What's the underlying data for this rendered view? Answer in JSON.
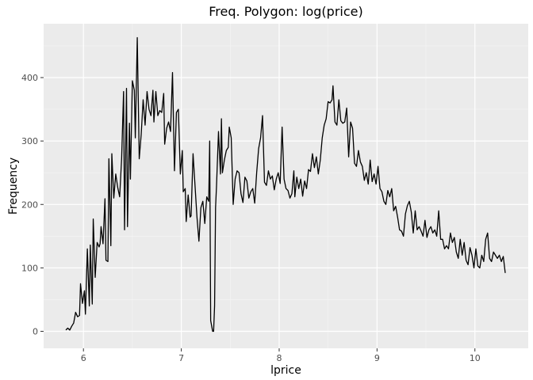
{
  "chart_data": {
    "type": "line",
    "title": "Freq. Polygon: log(price)",
    "xlabel": "lprice",
    "ylabel": "Frequency",
    "xlim": [
      5.7,
      10.0
    ],
    "ylim": [
      -25,
      485
    ],
    "x_ticks": [
      6,
      7,
      8,
      9,
      10
    ],
    "y_ticks": [
      0,
      100,
      200,
      300,
      400
    ],
    "x_minor_ticks": [
      6.5,
      7.5,
      8.5,
      9.5
    ],
    "y_minor_ticks": [
      50,
      150,
      250,
      350,
      450
    ],
    "grid": true,
    "legend": "none",
    "colors": {
      "panel": "#ebebeb",
      "grid_major": "#ffffff",
      "grid_minor": "#f5f5f5",
      "line": "#000000",
      "tick": "#333333"
    },
    "series": [
      {
        "values": [
          [
            5.82,
            2
          ],
          [
            5.84,
            5
          ],
          [
            5.86,
            2
          ],
          [
            5.88,
            8
          ],
          [
            5.9,
            13
          ],
          [
            5.92,
            30
          ],
          [
            5.94,
            23
          ],
          [
            5.96,
            25
          ],
          [
            5.97,
            75
          ],
          [
            5.99,
            44
          ],
          [
            6.01,
            64
          ],
          [
            6.02,
            27
          ],
          [
            6.04,
            130
          ],
          [
            6.06,
            40
          ],
          [
            6.07,
            136
          ],
          [
            6.09,
            43
          ],
          [
            6.1,
            177
          ],
          [
            6.12,
            85
          ],
          [
            6.14,
            140
          ],
          [
            6.16,
            133
          ],
          [
            6.17,
            138
          ],
          [
            6.18,
            165
          ],
          [
            6.2,
            138
          ],
          [
            6.22,
            209
          ],
          [
            6.23,
            112
          ],
          [
            6.25,
            110
          ],
          [
            6.26,
            272
          ],
          [
            6.28,
            135
          ],
          [
            6.29,
            280
          ],
          [
            6.31,
            210
          ],
          [
            6.33,
            248
          ],
          [
            6.35,
            227
          ],
          [
            6.37,
            212
          ],
          [
            6.39,
            272
          ],
          [
            6.41,
            378
          ],
          [
            6.42,
            160
          ],
          [
            6.44,
            383
          ],
          [
            6.45,
            165
          ],
          [
            6.47,
            328
          ],
          [
            6.48,
            240
          ],
          [
            6.5,
            395
          ],
          [
            6.52,
            380
          ],
          [
            6.53,
            305
          ],
          [
            6.55,
            463
          ],
          [
            6.57,
            272
          ],
          [
            6.59,
            310
          ],
          [
            6.61,
            365
          ],
          [
            6.63,
            325
          ],
          [
            6.65,
            378
          ],
          [
            6.67,
            350
          ],
          [
            6.69,
            340
          ],
          [
            6.71,
            380
          ],
          [
            6.72,
            330
          ],
          [
            6.74,
            378
          ],
          [
            6.76,
            340
          ],
          [
            6.78,
            348
          ],
          [
            6.8,
            345
          ],
          [
            6.82,
            375
          ],
          [
            6.83,
            295
          ],
          [
            6.85,
            320
          ],
          [
            6.87,
            330
          ],
          [
            6.89,
            315
          ],
          [
            6.91,
            408
          ],
          [
            6.93,
            253
          ],
          [
            6.95,
            345
          ],
          [
            6.97,
            350
          ],
          [
            6.99,
            248
          ],
          [
            7.01,
            285
          ],
          [
            7.02,
            220
          ],
          [
            7.04,
            225
          ],
          [
            7.05,
            173
          ],
          [
            7.07,
            215
          ],
          [
            7.09,
            180
          ],
          [
            7.1,
            182
          ],
          [
            7.12,
            280
          ],
          [
            7.14,
            230
          ],
          [
            7.16,
            180
          ],
          [
            7.18,
            142
          ],
          [
            7.2,
            195
          ],
          [
            7.22,
            205
          ],
          [
            7.24,
            170
          ],
          [
            7.26,
            212
          ],
          [
            7.28,
            205
          ],
          [
            7.29,
            300
          ],
          [
            7.3,
            17
          ],
          [
            7.32,
            0
          ],
          [
            7.33,
            0
          ],
          [
            7.34,
            40
          ],
          [
            7.35,
            195
          ],
          [
            7.36,
            230
          ],
          [
            7.38,
            315
          ],
          [
            7.4,
            248
          ],
          [
            7.41,
            335
          ],
          [
            7.42,
            250
          ],
          [
            7.44,
            270
          ],
          [
            7.46,
            285
          ],
          [
            7.48,
            290
          ],
          [
            7.49,
            322
          ],
          [
            7.51,
            305
          ],
          [
            7.53,
            200
          ],
          [
            7.55,
            240
          ],
          [
            7.57,
            253
          ],
          [
            7.59,
            250
          ],
          [
            7.61,
            217
          ],
          [
            7.63,
            203
          ],
          [
            7.65,
            243
          ],
          [
            7.67,
            237
          ],
          [
            7.69,
            210
          ],
          [
            7.71,
            220
          ],
          [
            7.73,
            225
          ],
          [
            7.75,
            202
          ],
          [
            7.77,
            250
          ],
          [
            7.79,
            288
          ],
          [
            7.81,
            305
          ],
          [
            7.83,
            340
          ],
          [
            7.85,
            235
          ],
          [
            7.87,
            230
          ],
          [
            7.89,
            253
          ],
          [
            7.91,
            240
          ],
          [
            7.93,
            245
          ],
          [
            7.95,
            223
          ],
          [
            7.97,
            240
          ],
          [
            7.99,
            250
          ],
          [
            8.01,
            233
          ],
          [
            8.03,
            322
          ],
          [
            8.05,
            240
          ],
          [
            8.07,
            225
          ],
          [
            8.09,
            222
          ],
          [
            8.11,
            210
          ],
          [
            8.13,
            217
          ],
          [
            8.15,
            253
          ],
          [
            8.16,
            212
          ],
          [
            8.18,
            243
          ],
          [
            8.2,
            225
          ],
          [
            8.22,
            240
          ],
          [
            8.24,
            213
          ],
          [
            8.26,
            237
          ],
          [
            8.28,
            225
          ],
          [
            8.3,
            255
          ],
          [
            8.32,
            252
          ],
          [
            8.34,
            280
          ],
          [
            8.36,
            258
          ],
          [
            8.38,
            275
          ],
          [
            8.4,
            248
          ],
          [
            8.42,
            270
          ],
          [
            8.44,
            305
          ],
          [
            8.46,
            325
          ],
          [
            8.48,
            335
          ],
          [
            8.5,
            362
          ],
          [
            8.52,
            360
          ],
          [
            8.54,
            365
          ],
          [
            8.55,
            387
          ],
          [
            8.57,
            330
          ],
          [
            8.59,
            325
          ],
          [
            8.61,
            365
          ],
          [
            8.63,
            332
          ],
          [
            8.65,
            328
          ],
          [
            8.67,
            330
          ],
          [
            8.69,
            352
          ],
          [
            8.71,
            275
          ],
          [
            8.73,
            330
          ],
          [
            8.75,
            320
          ],
          [
            8.77,
            265
          ],
          [
            8.79,
            260
          ],
          [
            8.81,
            285
          ],
          [
            8.83,
            267
          ],
          [
            8.85,
            260
          ],
          [
            8.87,
            238
          ],
          [
            8.89,
            250
          ],
          [
            8.91,
            232
          ],
          [
            8.93,
            270
          ],
          [
            8.95,
            236
          ],
          [
            8.97,
            248
          ],
          [
            8.99,
            232
          ],
          [
            9.01,
            260
          ],
          [
            9.03,
            225
          ],
          [
            9.05,
            220
          ],
          [
            9.07,
            205
          ],
          [
            9.09,
            200
          ],
          [
            9.11,
            222
          ],
          [
            9.13,
            212
          ],
          [
            9.15,
            225
          ],
          [
            9.17,
            190
          ],
          [
            9.19,
            197
          ],
          [
            9.21,
            180
          ],
          [
            9.23,
            160
          ],
          [
            9.25,
            158
          ],
          [
            9.27,
            150
          ],
          [
            9.29,
            185
          ],
          [
            9.31,
            198
          ],
          [
            9.33,
            205
          ],
          [
            9.35,
            188
          ],
          [
            9.37,
            155
          ],
          [
            9.39,
            190
          ],
          [
            9.41,
            160
          ],
          [
            9.43,
            165
          ],
          [
            9.45,
            158
          ],
          [
            9.47,
            150
          ],
          [
            9.49,
            175
          ],
          [
            9.51,
            148
          ],
          [
            9.53,
            160
          ],
          [
            9.55,
            165
          ],
          [
            9.57,
            155
          ],
          [
            9.59,
            160
          ],
          [
            9.61,
            150
          ],
          [
            9.63,
            190
          ],
          [
            9.65,
            145
          ],
          [
            9.67,
            145
          ],
          [
            9.69,
            130
          ],
          [
            9.71,
            135
          ],
          [
            9.73,
            130
          ],
          [
            9.75,
            155
          ],
          [
            9.77,
            140
          ],
          [
            9.79,
            148
          ],
          [
            9.81,
            125
          ],
          [
            9.83,
            115
          ],
          [
            9.85,
            145
          ],
          [
            9.87,
            120
          ],
          [
            9.89,
            140
          ],
          [
            9.91,
            112
          ],
          [
            9.93,
            105
          ],
          [
            9.95,
            132
          ],
          [
            9.97,
            120
          ],
          [
            9.99,
            100
          ],
          [
            10.01,
            130
          ],
          [
            10.03,
            103
          ],
          [
            10.05,
            100
          ],
          [
            10.07,
            120
          ],
          [
            10.09,
            110
          ],
          [
            10.11,
            145
          ],
          [
            10.13,
            155
          ],
          [
            10.15,
            115
          ],
          [
            10.17,
            110
          ],
          [
            10.19,
            125
          ],
          [
            10.21,
            120
          ],
          [
            10.23,
            115
          ],
          [
            10.25,
            120
          ],
          [
            10.27,
            110
          ],
          [
            10.29,
            118
          ],
          [
            10.31,
            92
          ]
        ]
      }
    ]
  }
}
